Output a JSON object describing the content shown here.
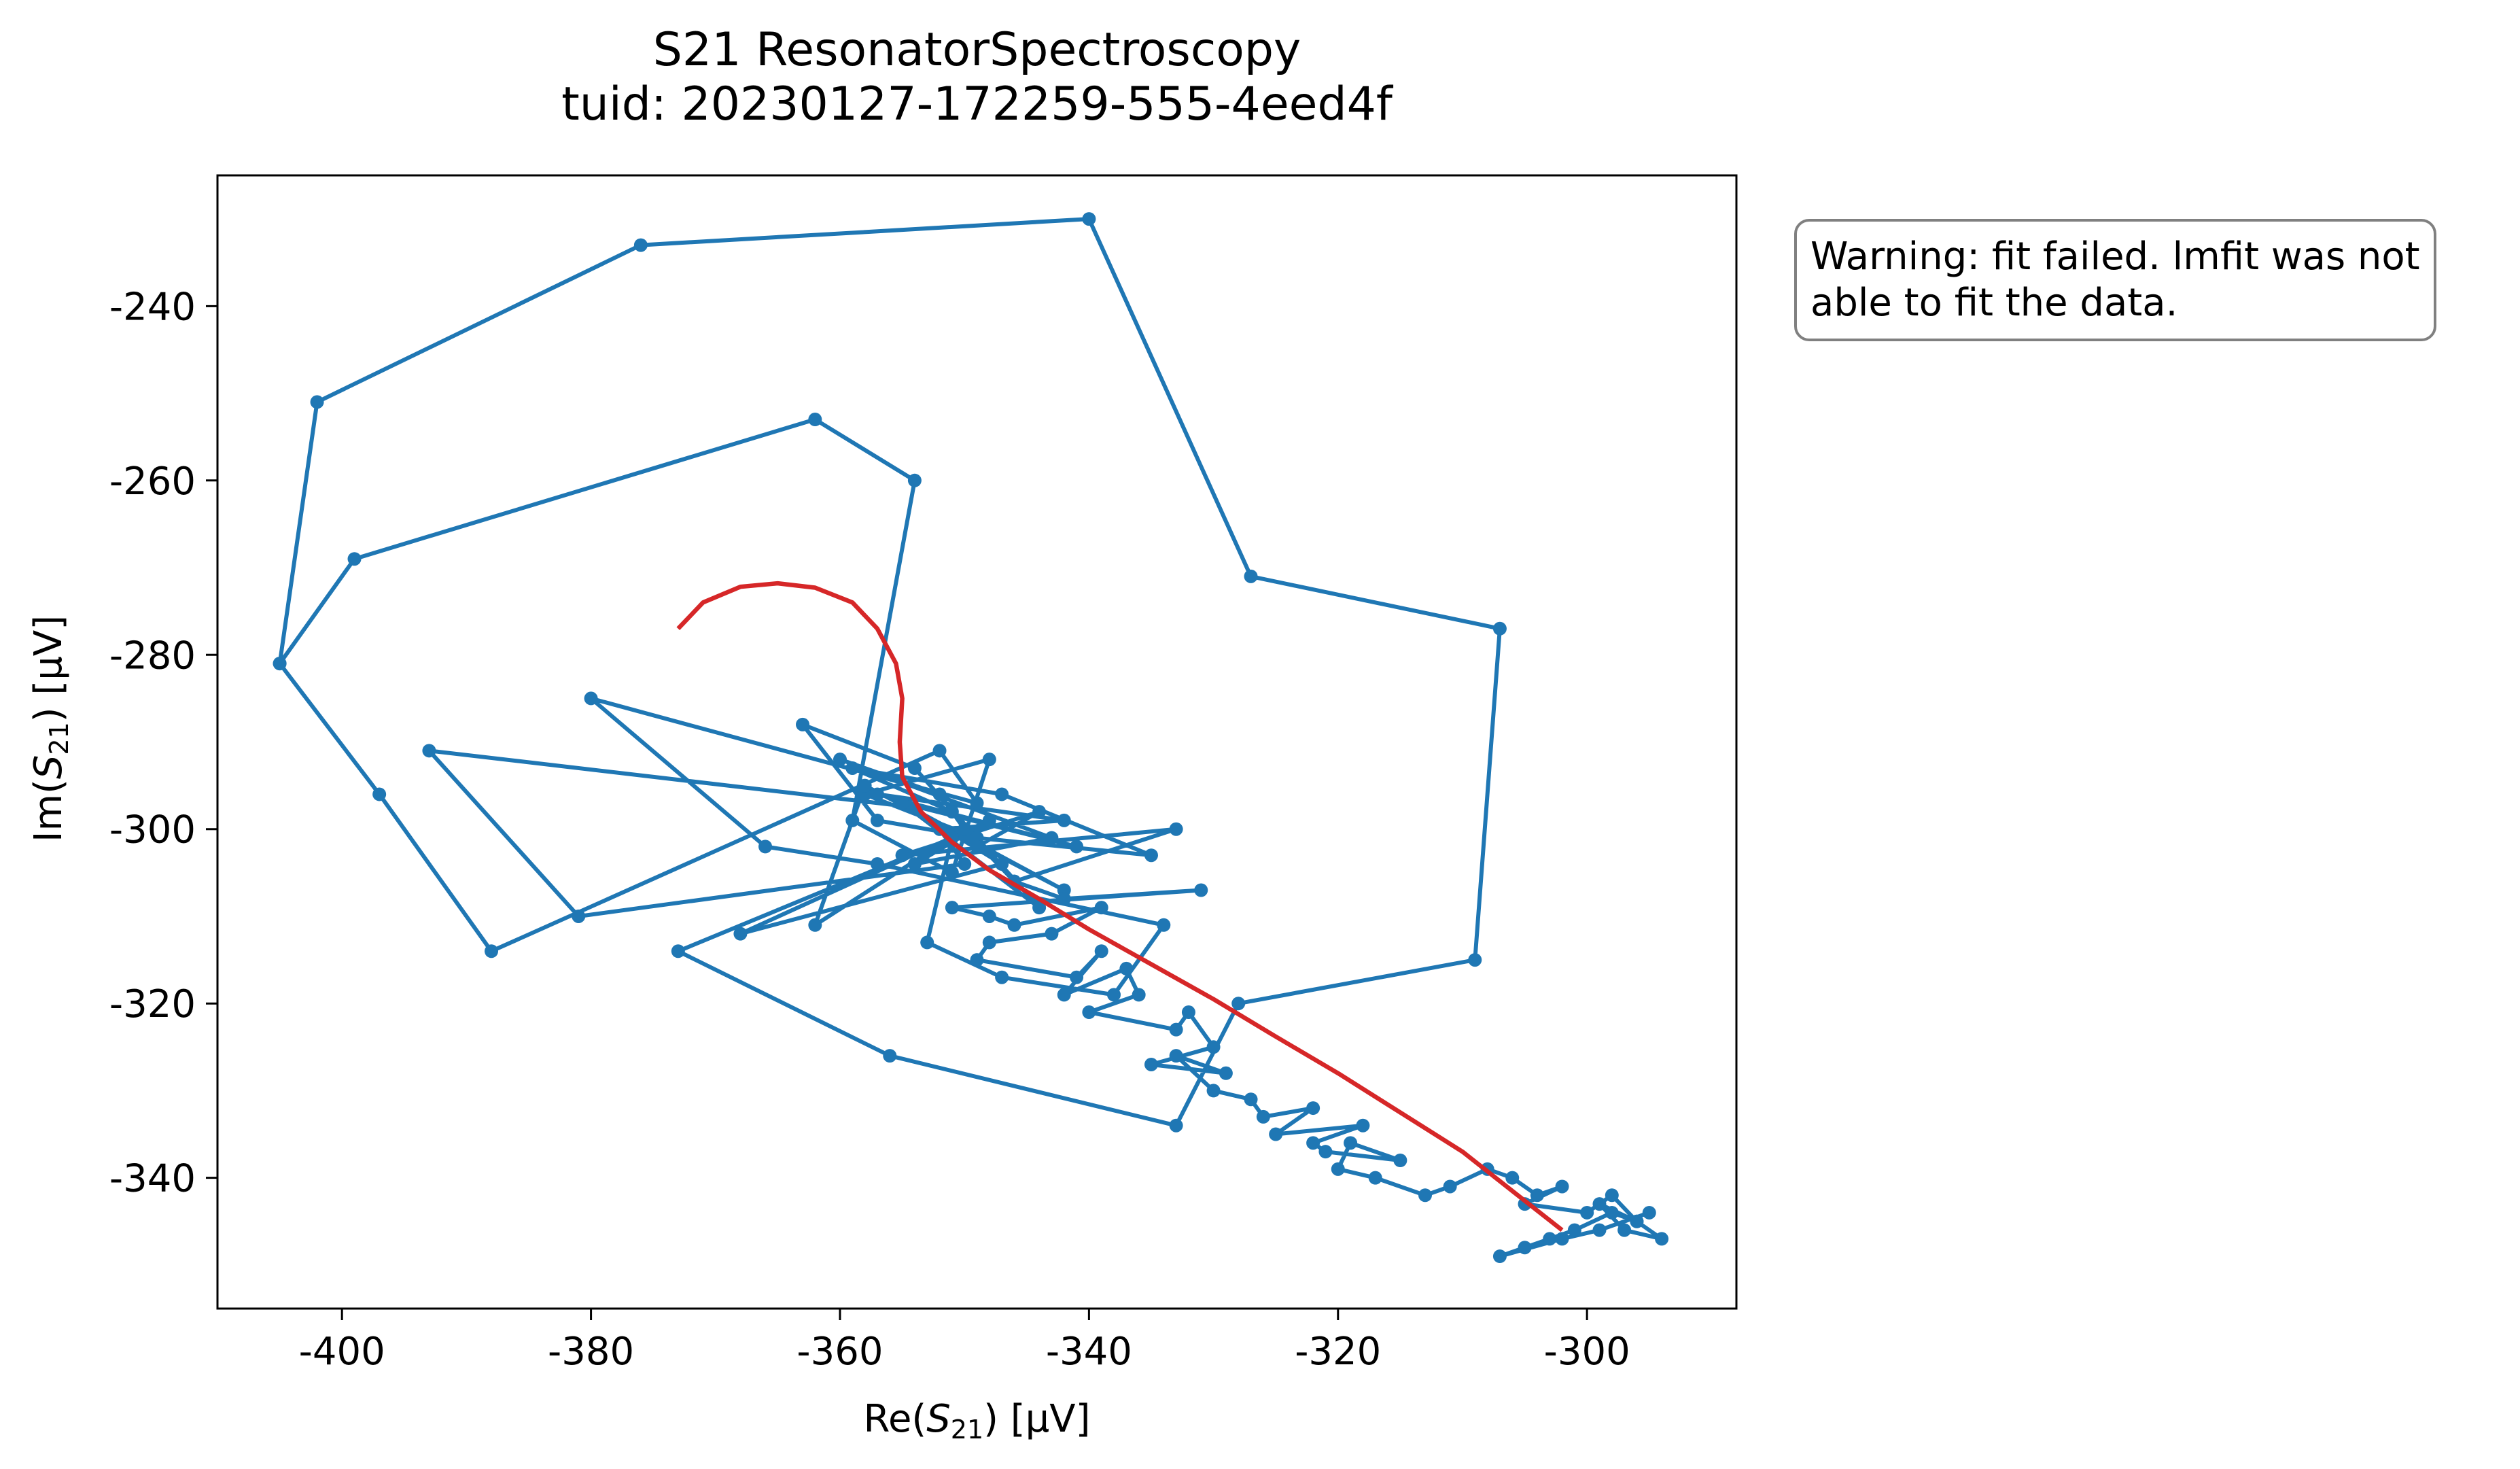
{
  "title_line1": "S21 ResonatorSpectroscopy",
  "title_line2": "tuid: 20230127-172259-555-4eed4f",
  "xlabel": {
    "prefix": "Re(",
    "symbol": "S",
    "subscript": "21",
    "suffix": ") [μV]"
  },
  "ylabel": {
    "prefix": "Im(",
    "symbol": "S",
    "subscript": "21",
    "suffix": ") [μV]"
  },
  "warning": {
    "line1": "Warning: fit failed. lmfit was not",
    "line2": "able to fit the data."
  },
  "chart_data": {
    "type": "line",
    "xlim": [
      -410,
      -288
    ],
    "ylim": [
      -355,
      -225
    ],
    "xticks": [
      -400,
      -380,
      -360,
      -340,
      -320,
      -300
    ],
    "yticks": [
      -240,
      -260,
      -280,
      -300,
      -320,
      -340
    ],
    "grid": false,
    "series": [
      {
        "colour": "#1f77b4",
        "marker": "dot",
        "x": [
          -405,
          -402,
          -376,
          -340,
          -327,
          -307,
          -309,
          -328,
          -333,
          -356,
          -373,
          -351,
          -353,
          -347,
          -338,
          -334,
          -357,
          -366,
          -380,
          -349,
          -352,
          -388,
          -397,
          -405,
          -399,
          -362,
          -354,
          -359,
          -351,
          -348,
          -358,
          -349,
          -346,
          -350,
          -362,
          -358,
          -342,
          -355,
          -344,
          -354,
          -363,
          -357,
          -349,
          -335,
          -347,
          -359,
          -351,
          -393,
          -381,
          -350,
          -352,
          -342,
          -357,
          -341,
          -355,
          -347,
          -368,
          -348,
          -354,
          -343,
          -360,
          -352,
          -349,
          -344,
          -355,
          -333,
          -346,
          -342,
          -331,
          -351,
          -348,
          -346,
          -339,
          -343,
          -348,
          -349,
          -341,
          -339,
          -342,
          -337,
          -336,
          -340,
          -333,
          -332,
          -330,
          -335,
          -329,
          -333,
          -330,
          -327,
          -326,
          -322,
          -325,
          -318,
          -322,
          -321,
          -315,
          -319,
          -320,
          -317,
          -313,
          -311,
          -308,
          -306,
          -304,
          -302,
          -305,
          -300,
          -298,
          -296,
          -299,
          -297,
          -294,
          -296,
          -298,
          -301,
          -303,
          -305,
          -307,
          -302,
          -299,
          -295
        ],
        "y": [
          -281,
          -251,
          -233,
          -230,
          -271,
          -277,
          -315,
          -320,
          -334,
          -326,
          -314,
          -301,
          -313,
          -317,
          -319,
          -311,
          -304,
          -302,
          -285,
          -297,
          -291,
          -314,
          -296,
          -281,
          -269,
          -253,
          -260,
          -299,
          -305,
          -292,
          -296,
          -301,
          -306,
          -300,
          -311,
          -295,
          -307,
          -297,
          -309,
          -293,
          -288,
          -299,
          -301,
          -303,
          -296,
          -293,
          -298,
          -291,
          -310,
          -304,
          -300,
          -299,
          -296,
          -302,
          -297,
          -304,
          -312,
          -299,
          -304,
          -301,
          -292,
          -296,
          -302,
          -298,
          -303,
          -300,
          -306,
          -308,
          -307,
          -309,
          -310,
          -311,
          -309,
          -312,
          -313,
          -315,
          -317,
          -314,
          -319,
          -316,
          -319,
          -321,
          -323,
          -321,
          -325,
          -327,
          -328,
          -326,
          -330,
          -331,
          -333,
          -332,
          -335,
          -334,
          -336,
          -337,
          -338,
          -336,
          -339,
          -340,
          -342,
          -341,
          -339,
          -340,
          -342,
          -341,
          -343,
          -344,
          -342,
          -345,
          -343,
          -346,
          -347,
          -345,
          -344,
          -346,
          -347,
          -348,
          -349,
          -347,
          -346,
          -344
        ]
      },
      {
        "colour": "#d62728",
        "marker": "none",
        "x": [
          -373,
          -371,
          -368,
          -365,
          -362,
          -359,
          -357,
          -355.5,
          -355,
          -355.2,
          -355,
          -353.5,
          -351,
          -348,
          -344,
          -340,
          -335,
          -330,
          -325,
          -320,
          -315,
          -310,
          -306,
          -302
        ],
        "y": [
          -277,
          -274,
          -272.2,
          -271.8,
          -272.3,
          -274,
          -277,
          -281,
          -285,
          -290,
          -294,
          -298,
          -301.5,
          -304.7,
          -308,
          -311.5,
          -315.5,
          -319.5,
          -323.8,
          -328,
          -332.5,
          -337,
          -341.5,
          -346
        ]
      }
    ]
  }
}
